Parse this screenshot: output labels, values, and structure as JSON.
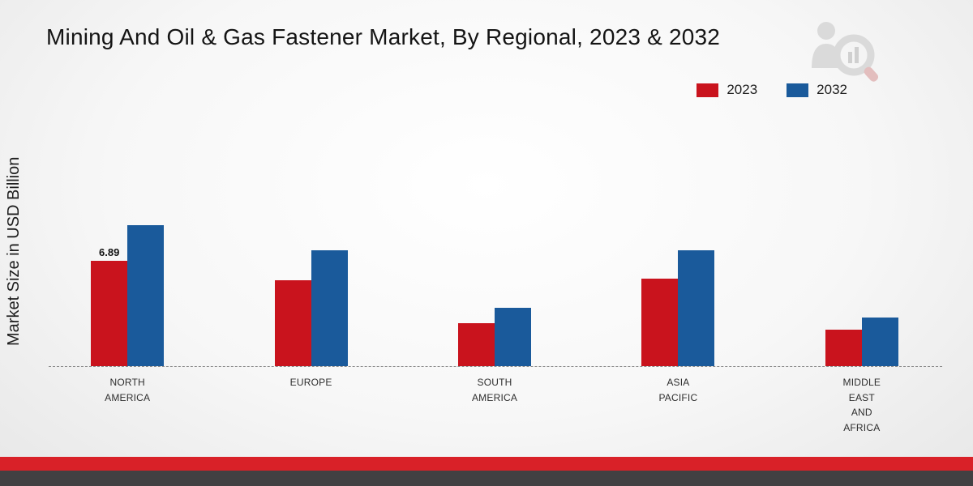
{
  "title": "Mining And Oil & Gas Fastener Market, By Regional, 2023 & 2032",
  "ylabel": "Market Size in USD Billion",
  "legend": {
    "position": "top-right",
    "items": [
      {
        "label": "2023",
        "color": "#c9131d"
      },
      {
        "label": "2032",
        "color": "#1a5a9b"
      }
    ]
  },
  "chart_data": {
    "type": "bar",
    "title": "Mining And Oil & Gas Fastener Market, By Regional, 2023 & 2032",
    "xlabel": "",
    "ylabel": "Market Size in USD Billion",
    "categories": [
      "NORTH AMERICA",
      "EUROPE",
      "SOUTH AMERICA",
      "ASIA PACIFIC",
      "MIDDLE EAST AND AFRICA"
    ],
    "series": [
      {
        "name": "2023",
        "color": "#c9131d",
        "values": [
          6.89,
          5.6,
          2.8,
          5.7,
          2.4
        ],
        "labels": [
          "6.89",
          "",
          "",
          "",
          ""
        ]
      },
      {
        "name": "2032",
        "color": "#1a5a9b",
        "values": [
          9.2,
          7.6,
          3.8,
          7.6,
          3.2
        ],
        "labels": [
          "",
          "",
          "",
          "",
          ""
        ]
      }
    ],
    "ylim": [
      0,
      16
    ],
    "grid": false,
    "legend_position": "top-right",
    "baseline_style": "dashed"
  },
  "branding": {
    "logo_icon": "magnifier-person-watermark",
    "footer_red": "#d92128",
    "footer_dark": "#414042"
  }
}
